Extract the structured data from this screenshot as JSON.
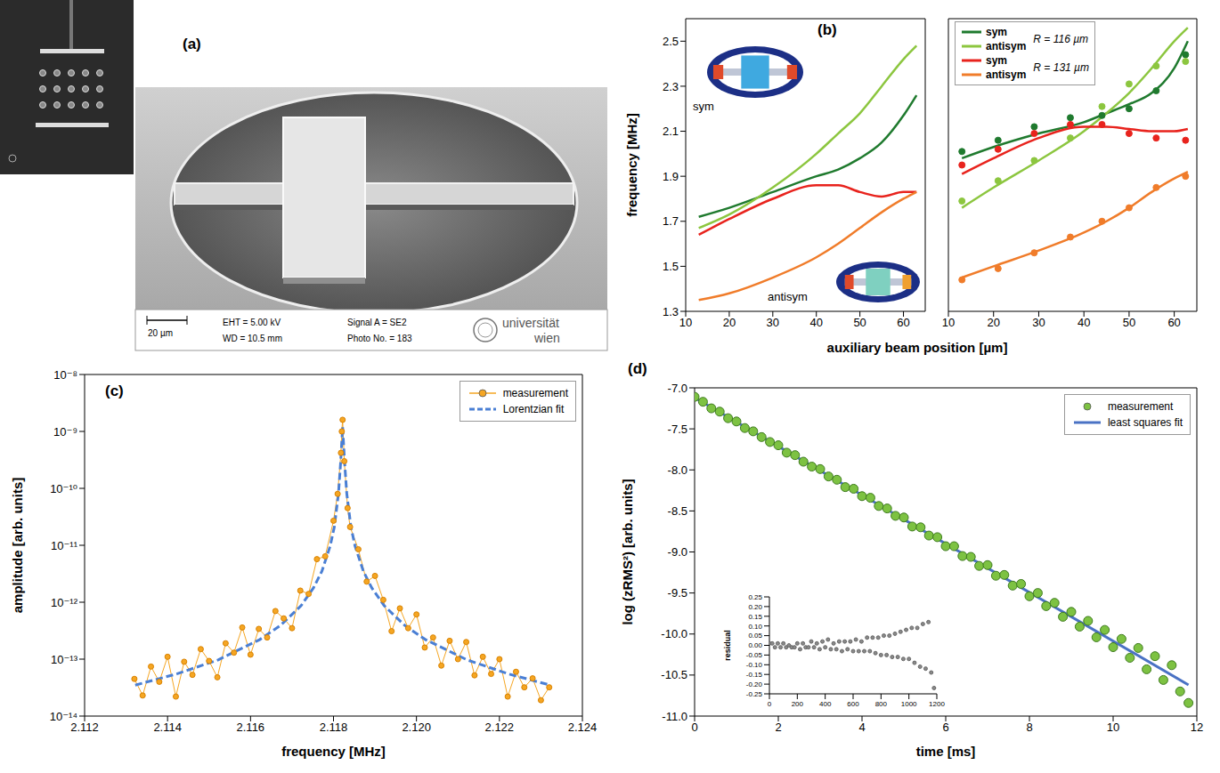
{
  "image_panel": {
    "panel": "(a)",
    "scale_bar": "20 µm",
    "info": [
      "EHT = 5.00 kV",
      "WD = 10.5 mm",
      "Signal A = SE2",
      "Photo No. = 183"
    ],
    "logo": [
      "universität",
      "wien"
    ]
  },
  "chart_data": [
    {
      "type": "line",
      "panel": "(b)",
      "xlabel": "auxiliary beam position [µm]",
      "ylabel": "frequency [MHz]",
      "subplots": [
        {
          "xlim": [
            10,
            65
          ],
          "xticks": [
            10,
            20,
            30,
            40,
            50,
            60
          ],
          "ylim": [
            1.3,
            2.6
          ],
          "yticks": [
            1.3,
            1.5,
            1.7,
            1.9,
            2.1,
            2.3,
            2.5
          ],
          "annotations": [
            "sym",
            "antisym"
          ],
          "x": [
            13,
            20,
            30,
            40,
            45,
            50,
            55,
            60,
            63
          ],
          "series": [
            {
              "name": "sym",
              "color": "#1f7a2e",
              "values": [
                1.72,
                1.76,
                1.83,
                1.9,
                1.93,
                1.98,
                2.05,
                2.17,
                2.26
              ]
            },
            {
              "name": "antisym",
              "color": "#8cc63f",
              "values": [
                1.67,
                1.73,
                1.85,
                2.0,
                2.09,
                2.18,
                2.3,
                2.42,
                2.48
              ]
            },
            {
              "name": "sym",
              "color": "#e8231d",
              "values": [
                1.64,
                1.71,
                1.8,
                1.86,
                1.86,
                1.83,
                1.81,
                1.83,
                1.83
              ]
            },
            {
              "name": "antisym",
              "color": "#f07c2a",
              "values": [
                1.35,
                1.38,
                1.45,
                1.54,
                1.6,
                1.67,
                1.74,
                1.8,
                1.83
              ]
            }
          ]
        },
        {
          "xlim": [
            10,
            65
          ],
          "xticks": [
            10,
            20,
            30,
            40,
            50,
            60
          ],
          "ylim": [
            1.3,
            2.6
          ],
          "yticks": [
            1.3,
            1.5,
            1.7,
            1.9,
            2.1,
            2.3,
            2.5
          ],
          "tick_labels": "x",
          "legend": "upper left",
          "x": [
            13,
            20,
            30,
            40,
            45,
            50,
            55,
            60,
            63
          ],
          "series": [
            {
              "name": "sym",
              "group": "R = 116 µm",
              "color": "#1f7a2e",
              "values": [
                1.98,
                2.03,
                2.09,
                2.14,
                2.18,
                2.22,
                2.27,
                2.38,
                2.5
              ],
              "markers": {
                "marker": "circle",
                "x": [
                  13,
                  21,
                  29,
                  37,
                  44,
                  50,
                  56,
                  62.5
                ],
                "values": [
                  2.01,
                  2.06,
                  2.12,
                  2.16,
                  2.17,
                  2.2,
                  2.28,
                  2.44
                ]
              }
            },
            {
              "name": "antisym",
              "group": "R = 116 µm",
              "color": "#8cc63f",
              "values": [
                1.76,
                1.85,
                1.97,
                2.1,
                2.18,
                2.27,
                2.38,
                2.5,
                2.56
              ],
              "markers": {
                "marker": "circle",
                "x": [
                  13,
                  21,
                  29,
                  37,
                  44,
                  50,
                  56,
                  62.5
                ],
                "values": [
                  1.79,
                  1.88,
                  1.97,
                  2.07,
                  2.21,
                  2.31,
                  2.39,
                  2.41
                ]
              }
            },
            {
              "name": "sym",
              "group": "R = 131 µm",
              "color": "#e8231d",
              "values": [
                1.91,
                1.98,
                2.07,
                2.12,
                2.12,
                2.11,
                2.1,
                2.1,
                2.11
              ],
              "markers": {
                "marker": "circle",
                "x": [
                  13,
                  21,
                  29,
                  37,
                  44,
                  50,
                  56,
                  62.5
                ],
                "values": [
                  1.95,
                  2.02,
                  2.09,
                  2.13,
                  2.13,
                  2.09,
                  2.07,
                  2.06
                ]
              }
            },
            {
              "name": "antisym",
              "group": "R = 131 µm",
              "color": "#f07c2a",
              "values": [
                1.45,
                1.5,
                1.57,
                1.65,
                1.7,
                1.76,
                1.83,
                1.89,
                1.92
              ],
              "markers": {
                "marker": "circle",
                "x": [
                  13,
                  21,
                  29,
                  37,
                  44,
                  50,
                  56,
                  62.5
                ],
                "values": [
                  1.44,
                  1.49,
                  1.56,
                  1.63,
                  1.7,
                  1.76,
                  1.85,
                  1.9
                ]
              }
            }
          ]
        }
      ]
    },
    {
      "type": "line",
      "panel": "(c)",
      "xlabel": "frequency [MHz]",
      "ylabel": "amplitude [arb. units]",
      "log": "y",
      "legend": "upper right",
      "xlim": [
        2.112,
        2.124
      ],
      "xticks": [
        2.112,
        2.114,
        2.116,
        2.118,
        {
          "value": 2.12,
          "label": "2.120"
        },
        2.122,
        2.124
      ],
      "ylim": [
        1e-14,
        1e-08
      ],
      "yticks": [
        {
          "value": 1e-14,
          "label": "10⁻¹⁴"
        },
        {
          "value": 1e-13,
          "label": "10⁻¹³"
        },
        {
          "value": 1e-12,
          "label": "10⁻¹²"
        },
        {
          "value": 1e-11,
          "label": "10⁻¹¹"
        },
        {
          "value": 1e-10,
          "label": "10⁻¹⁰"
        },
        {
          "value": 1e-09,
          "label": "10⁻⁹"
        },
        {
          "value": 1e-08,
          "label": "10⁻⁸"
        }
      ],
      "series": [
        {
          "name": "measurement",
          "color": "#f5a623",
          "marker": "circle",
          "line_style": "solid",
          "x": [
            2.1132,
            2.1134,
            2.1136,
            2.1138,
            2.114,
            2.1142,
            2.1144,
            2.1146,
            2.1148,
            2.115,
            2.1152,
            2.1154,
            2.1156,
            2.1158,
            2.116,
            2.1162,
            2.1164,
            2.1166,
            2.1168,
            2.117,
            2.1172,
            2.1174,
            2.1176,
            2.1178,
            2.118,
            2.1181,
            2.11818,
            2.1182,
            2.11822,
            2.11826,
            2.11834,
            2.1184,
            2.1186,
            2.1188,
            2.119,
            2.1192,
            2.1194,
            2.1196,
            2.1198,
            2.12,
            2.1202,
            2.1204,
            2.1206,
            2.1208,
            2.121,
            2.1212,
            2.1214,
            2.1216,
            2.1218,
            2.122,
            2.1222,
            2.1224,
            2.1226,
            2.1228,
            2.123,
            2.1232
          ],
          "values": [
            4.5e-14,
            2.3e-14,
            7.4e-14,
            4e-14,
            1.1e-13,
            2.2e-14,
            9e-14,
            5.3e-14,
            1.5e-13,
            9.3e-14,
            4.8e-14,
            1.9e-13,
            1.3e-13,
            3.6e-13,
            1.2e-13,
            3.4e-13,
            2.4e-13,
            7e-13,
            5.2e-13,
            3.5e-13,
            1.6e-12,
            1.4e-12,
            5.7e-12,
            6.4e-12,
            2.7e-11,
            8e-11,
            4.2e-10,
            1e-09,
            1.6e-09,
            3e-10,
            4.5e-11,
            2.1e-11,
            8.5e-12,
            2.3e-12,
            2.9e-12,
            1.1e-12,
            3.1e-13,
            7.8e-13,
            3.5e-13,
            6.1e-13,
            1.6e-13,
            2.4e-13,
            7.7e-14,
            2.1e-13,
            1e-13,
            2e-13,
            5.2e-14,
            1.1e-13,
            5.5e-14,
            1e-13,
            2.2e-14,
            6e-14,
            3.2e-14,
            4.6e-14,
            1.9e-14,
            3.2e-14
          ]
        },
        {
          "name": "Lorentzian fit",
          "color": "#4a7fd4",
          "line_style": "dashed",
          "x": [
            2.11322,
            2.11422,
            2.11522,
            2.11622,
            2.11672,
            2.11722,
            2.11752,
            2.11772,
            2.11792,
            2.11802,
            2.11812,
            2.11817,
            2.11822,
            2.11827,
            2.11832,
            2.11842,
            2.11852,
            2.11872,
            2.11892,
            2.11922,
            2.11972,
            2.12022,
            2.12122,
            2.12222,
            2.12322
          ],
          "values": [
            3.5e-14,
            5.5e-14,
            9.7e-14,
            2.2e-13,
            3.9e-13,
            8.7e-13,
            1.8e-12,
            3.5e-12,
            9.7e-12,
            2.1e-11,
            8.1e-11,
            2.7e-10,
            1.2e-09,
            2.7e-10,
            8.1e-11,
            2.1e-11,
            9.7e-12,
            3.5e-12,
            1.8e-12,
            8.7e-13,
            3.9e-13,
            2.2e-13,
            9.7e-14,
            5.5e-14,
            3.5e-14
          ]
        }
      ]
    },
    {
      "type": "scatter",
      "panel": "(d)",
      "xlabel": "time [ms]",
      "ylabel": "log (zRMS²) [arb. units]",
      "legend": "upper right",
      "xlim": [
        0,
        12
      ],
      "xticks": [
        0,
        2,
        4,
        6,
        8,
        10,
        12
      ],
      "ylim": [
        -11,
        -7
      ],
      "yticks": [
        {
          "value": -11,
          "label": "-11.0"
        },
        -10.5,
        {
          "value": -10,
          "label": "-10.0"
        },
        -9.5,
        {
          "value": -9,
          "label": "-9.0"
        },
        -8.5,
        {
          "value": -8,
          "label": "-8.0"
        },
        -7.5,
        {
          "value": -7,
          "label": "-7.0"
        }
      ],
      "series": [
        {
          "name": "measurement",
          "type": "scatter",
          "color": "#7dc242",
          "marker": "circle",
          "x": [
            0,
            0.2,
            0.4,
            0.6,
            0.8,
            1,
            1.2,
            1.4,
            1.6,
            1.8,
            2,
            2.2,
            2.4,
            2.6,
            2.8,
            3,
            3.2,
            3.4,
            3.6,
            3.8,
            4,
            4.2,
            4.4,
            4.6,
            4.8,
            5,
            5.2,
            5.4,
            5.6,
            5.8,
            6,
            6.2,
            6.4,
            6.6,
            6.8,
            7,
            7.2,
            7.4,
            7.6,
            7.8,
            8,
            8.2,
            8.4,
            8.6,
            8.8,
            9,
            9.2,
            9.4,
            9.6,
            9.8,
            10,
            10.2,
            10.4,
            10.6,
            10.8,
            11,
            11.2,
            11.4,
            11.6,
            11.8
          ],
          "values": [
            -7.11,
            -7.17,
            -7.25,
            -7.29,
            -7.37,
            -7.41,
            -7.49,
            -7.53,
            -7.6,
            -7.66,
            -7.7,
            -7.79,
            -7.82,
            -7.9,
            -7.96,
            -7.99,
            -8.08,
            -8.12,
            -8.21,
            -8.23,
            -8.32,
            -8.34,
            -8.44,
            -8.47,
            -8.56,
            -8.58,
            -8.69,
            -8.7,
            -8.8,
            -8.82,
            -8.93,
            -8.93,
            -9.05,
            -9.06,
            -9.17,
            -9.16,
            -9.29,
            -9.28,
            -9.41,
            -9.39,
            -9.54,
            -9.5,
            -9.66,
            -9.62,
            -9.79,
            -9.73,
            -9.91,
            -9.84,
            -10.04,
            -9.95,
            -10.16,
            -10.06,
            -10.29,
            -10.17,
            -10.43,
            -10.27,
            -10.56,
            -10.38,
            -10.7,
            -10.84
          ]
        },
        {
          "name": "least squares fit",
          "type": "line",
          "color": "#4a72c4",
          "line_style": "solid",
          "x": [
            0,
            11.8
          ],
          "values": [
            -7.12,
            -10.62
          ]
        }
      ],
      "inset": {
        "type": "scatter",
        "ylabel": "residual",
        "color": "#8a8a8a",
        "marker": "circle",
        "xlim": [
          0,
          1200
        ],
        "xticks": [
          0,
          200,
          400,
          600,
          800,
          1000,
          1200
        ],
        "ylim": [
          -0.25,
          0.25
        ],
        "yticks": [
          -0.25,
          {
            "value": -0.2,
            "label": "-0.20"
          },
          -0.15,
          {
            "value": -0.1,
            "label": "-0.10"
          },
          -0.05,
          {
            "value": 0,
            "label": "0.00"
          },
          0.05,
          {
            "value": 0.1,
            "label": "0.10"
          },
          0.15,
          {
            "value": 0.2,
            "label": "0.20"
          },
          0.25
        ],
        "x": [
          0,
          20,
          40,
          60,
          80,
          100,
          120,
          140,
          160,
          180,
          200,
          220,
          240,
          260,
          280,
          300,
          320,
          340,
          360,
          380,
          400,
          420,
          440,
          460,
          480,
          500,
          520,
          540,
          560,
          580,
          600,
          620,
          640,
          660,
          680,
          700,
          720,
          740,
          760,
          780,
          800,
          820,
          840,
          860,
          880,
          900,
          920,
          940,
          960,
          980,
          1000,
          1020,
          1040,
          1060,
          1080,
          1100,
          1120,
          1140,
          1160,
          1180
        ],
        "values": [
          0.01,
          0.01,
          -0.01,
          0.01,
          -0.01,
          0.01,
          -0.01,
          0.0,
          -0.01,
          -0.01,
          0.01,
          -0.02,
          0.01,
          -0.01,
          -0.01,
          0.02,
          -0.01,
          0.01,
          -0.02,
          0.02,
          -0.01,
          0.03,
          -0.02,
          0.01,
          -0.02,
          0.02,
          -0.03,
          0.02,
          -0.02,
          0.02,
          -0.03,
          0.03,
          -0.03,
          0.02,
          -0.03,
          0.04,
          -0.03,
          0.04,
          -0.04,
          0.04,
          -0.05,
          0.05,
          -0.05,
          0.05,
          -0.06,
          0.06,
          -0.06,
          0.07,
          -0.07,
          0.08,
          -0.07,
          0.09,
          -0.09,
          0.09,
          -0.11,
          0.11,
          -0.12,
          0.12,
          -0.14,
          -0.22
        ]
      }
    }
  ]
}
